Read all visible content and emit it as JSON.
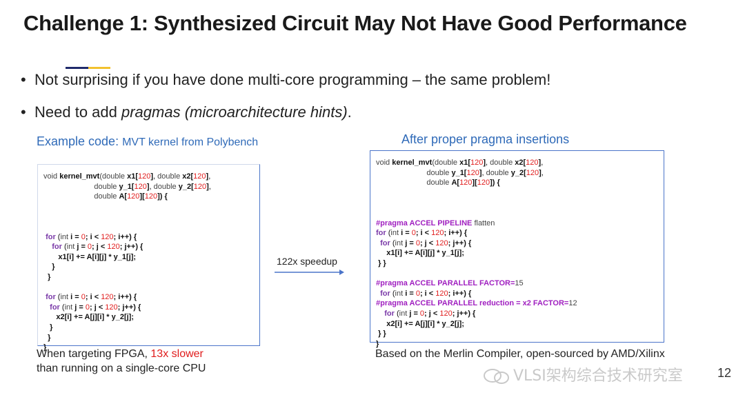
{
  "slide": {
    "title": "Challenge 1:  Synthesized Circuit May Not Have Good Performance",
    "bullets": [
      {
        "text": "Not surprising if you have done multi-core programming – the same problem!"
      },
      {
        "prefix": "Need to add ",
        "italic": "pragmas (microarchitecture hints)",
        "suffix": "."
      }
    ],
    "page_number": "12"
  },
  "left": {
    "caption_main": "Example code: ",
    "caption_small": "MVT kernel from Polybench",
    "footer_prefix": "When targeting FPGA, ",
    "footer_highlight": "13x slower",
    "footer_line2": "than running on a single-core CPU"
  },
  "right": {
    "caption": "After proper pragma insertions",
    "footer": "Based on the Merlin Compiler, open-sourced by AMD/Xilinx"
  },
  "arrow": {
    "label": "122x speedup"
  },
  "watermark": {
    "text": "VLSI架构综合技术研究室"
  },
  "colors": {
    "caption_blue": "#2f6ab8",
    "highlight_red": "#e01b1b",
    "pragma_purple": "#a020c0",
    "accent_navy": "#1f2a6b",
    "accent_gold": "#f2c12e"
  }
}
